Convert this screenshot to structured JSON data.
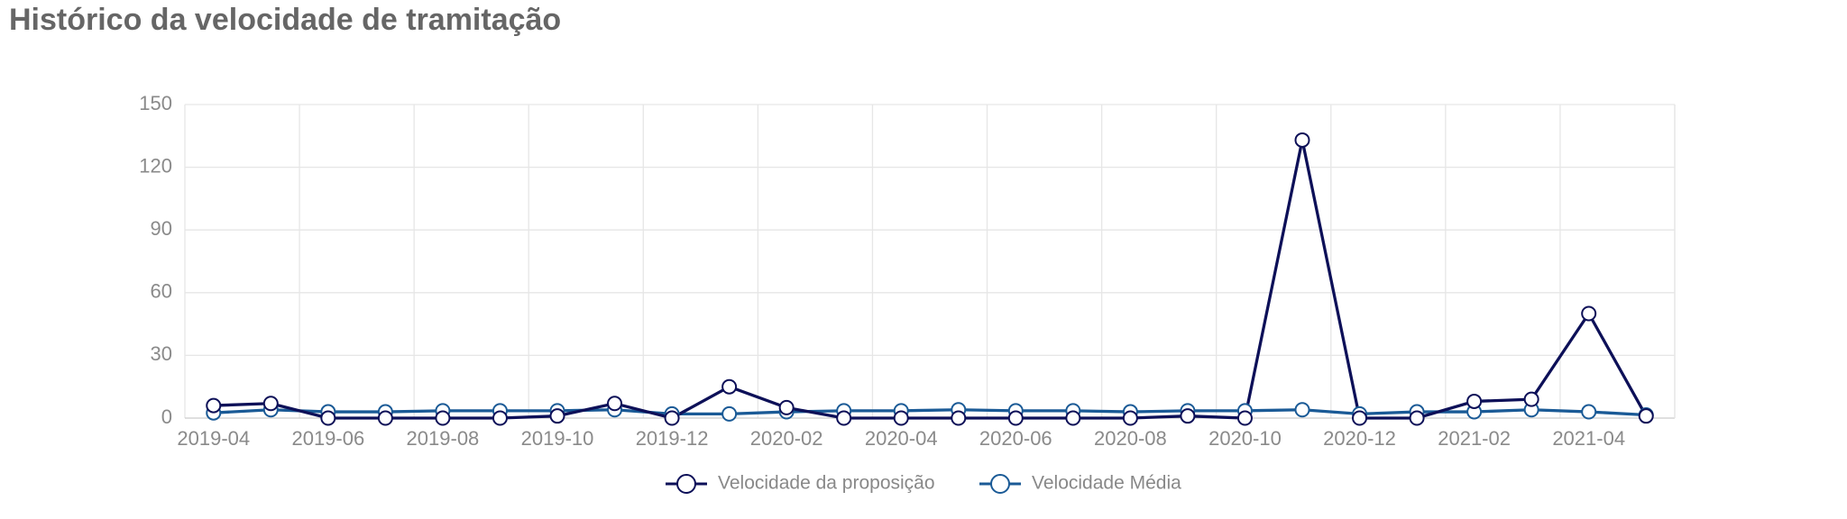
{
  "chart_data": {
    "type": "line",
    "title": "Histórico da velocidade de tramitação",
    "categories": [
      "2019-04",
      null,
      "2019-06",
      null,
      "2019-08",
      null,
      "2019-10",
      null,
      "2019-12",
      null,
      "2020-02",
      null,
      "2020-04",
      null,
      "2020-06",
      null,
      "2020-08",
      null,
      "2020-10",
      null,
      "2020-12",
      null,
      "2021-02",
      null,
      "2021-04",
      null
    ],
    "series": [
      {
        "name": "Velocidade da proposição",
        "color": "#0d1058",
        "values": [
          6,
          7,
          0,
          0,
          0,
          0,
          1,
          7,
          0,
          15,
          5,
          0,
          0,
          0,
          0,
          0,
          0,
          1,
          0,
          133,
          0,
          0,
          8,
          9,
          50,
          1
        ]
      },
      {
        "name": "Velocidade Média",
        "color": "#1a5a96",
        "values": [
          2.5,
          4,
          3,
          3,
          3.5,
          3.5,
          3.5,
          4,
          2,
          2,
          3,
          3.5,
          3.5,
          4,
          3.5,
          3.5,
          3,
          3.5,
          3.5,
          4,
          2,
          3,
          3,
          4,
          3,
          1.5
        ]
      }
    ],
    "ylim": [
      0,
      150
    ],
    "yticks": [
      0,
      30,
      60,
      90,
      120,
      150
    ],
    "grid": true,
    "legend": "bottom"
  }
}
